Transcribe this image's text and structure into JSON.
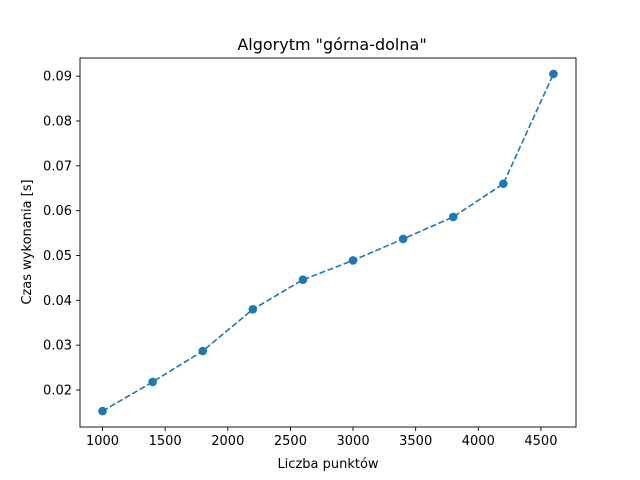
{
  "chart_data": {
    "type": "line",
    "title": "Algorytm \"górna-dolna\"",
    "xlabel": "Liczba punktów",
    "ylabel": "Czas wykonania [s]",
    "x": [
      1000,
      1400,
      1800,
      2200,
      2600,
      3000,
      3400,
      3800,
      4200,
      4600
    ],
    "series": [
      {
        "values": [
          0.0153,
          0.0218,
          0.0287,
          0.038,
          0.0446,
          0.0489,
          0.0537,
          0.0586,
          0.066,
          0.0905
        ],
        "color": "#1f77b4",
        "line_style": "dashed",
        "marker": "circle"
      }
    ],
    "xlim": [
      820,
      4780
    ],
    "ylim": [
      0.01175,
      0.09405
    ],
    "xticks": [
      1000,
      1500,
      2000,
      2500,
      3000,
      3500,
      4000,
      4500
    ],
    "yticks": [
      0.02,
      0.03,
      0.04,
      0.05,
      0.06,
      0.07,
      0.08,
      0.09
    ],
    "xtick_labels": [
      "1000",
      "1500",
      "2000",
      "2500",
      "3000",
      "3500",
      "4000",
      "4500"
    ],
    "ytick_labels": [
      "0.02",
      "0.03",
      "0.04",
      "0.05",
      "0.06",
      "0.07",
      "0.08",
      "0.09"
    ],
    "grid": false,
    "legend": "none"
  }
}
